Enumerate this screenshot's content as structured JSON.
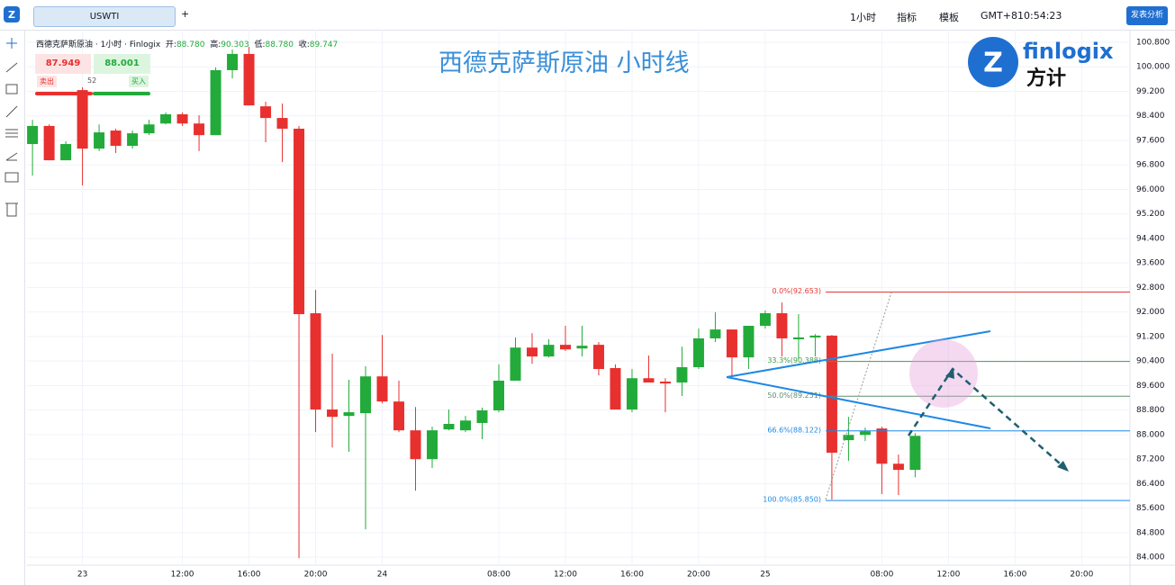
{
  "header": {
    "tab": "USWTI",
    "add_tab": "+",
    "interval": "1小时",
    "indicators": "指标",
    "templates": "模板",
    "timezone": "GMT+8",
    "clock": "10:54:23",
    "publish": "发表分析"
  },
  "legend": {
    "symbol": "西德克萨斯原油 · 1小时 · Finlogix",
    "open_label": "开:",
    "open": "88.780",
    "high_label": "高:",
    "high": "90.303",
    "low_label": "低:",
    "low": "88.780",
    "close_label": "收:",
    "close": "89.747"
  },
  "trade": {
    "sell_price": "87.949",
    "buy_price": "88.001",
    "sell": "卖出",
    "spread": "52",
    "buy": "买入"
  },
  "logo": {
    "name": "finlogix",
    "cn": "方计"
  },
  "chart_data": {
    "type": "candlestick",
    "title": "西德克萨斯原油 小时线",
    "up_color": "#22ab3a",
    "down_color": "#e8302f",
    "open": [
      97.48,
      98.07,
      96.95,
      99.24,
      97.33,
      97.92,
      97.42,
      97.83,
      98.15,
      98.45,
      98.15,
      97.77,
      99.89,
      100.42,
      98.71,
      98.33,
      97.98,
      91.96,
      88.82,
      88.61,
      88.7,
      89.9,
      89.08,
      88.14,
      87.2,
      88.17,
      88.14,
      88.38,
      88.79,
      89.76,
      90.84,
      90.55,
      90.93,
      90.81,
      90.93,
      90.17,
      88.82,
      89.84,
      89.73,
      89.7,
      90.2,
      91.14,
      91.43,
      90.52,
      91.55,
      91.96,
      91.11,
      91.17,
      91.23,
      87.82,
      87.99,
      88.2,
      87.05,
      86.85
    ],
    "high": [
      98.27,
      98.12,
      97.57,
      99.33,
      98.12,
      97.98,
      97.92,
      98.27,
      98.51,
      98.51,
      98.42,
      99.98,
      100.56,
      100.65,
      98.86,
      98.8,
      98.07,
      92.72,
      90.64,
      89.79,
      90.23,
      91.25,
      89.76,
      88.9,
      88.26,
      88.82,
      88.61,
      88.88,
      90.29,
      91.17,
      91.31,
      91.11,
      91.55,
      91.55,
      91.02,
      90.29,
      90.14,
      90.58,
      89.84,
      90.87,
      91.46,
      91.99,
      91.43,
      91.55,
      92.05,
      92.31,
      91.93,
      91.28,
      91.25,
      88.58,
      88.23,
      88.26,
      87.35,
      88.05
    ],
    "low": [
      96.45,
      96.95,
      96.95,
      96.13,
      97.25,
      97.19,
      97.33,
      97.77,
      98.12,
      98.07,
      97.25,
      97.77,
      99.62,
      98.74,
      97.54,
      96.89,
      83.97,
      88.08,
      87.58,
      87.44,
      84.91,
      89.02,
      88.08,
      86.17,
      86.91,
      88.14,
      88.08,
      87.85,
      88.73,
      89.76,
      90.31,
      90.52,
      90.73,
      90.55,
      89.93,
      88.82,
      88.73,
      89.7,
      88.73,
      89.26,
      90.14,
      91.02,
      89.9,
      90.14,
      91.46,
      90.55,
      90.46,
      90.55,
      85.88,
      87.14,
      87.79,
      86.06,
      86.03,
      86.61
    ],
    "close": [
      98.07,
      96.95,
      97.48,
      97.33,
      97.86,
      97.42,
      97.83,
      98.12,
      98.45,
      98.15,
      97.77,
      99.89,
      100.42,
      98.74,
      98.33,
      97.98,
      91.93,
      88.82,
      88.58,
      88.73,
      89.9,
      89.08,
      88.14,
      87.2,
      88.14,
      88.35,
      88.46,
      88.79,
      89.76,
      90.84,
      90.55,
      90.93,
      90.78,
      90.9,
      90.14,
      88.82,
      89.84,
      89.7,
      89.67,
      90.2,
      91.14,
      91.43,
      90.52,
      91.55,
      91.96,
      91.14,
      91.17,
      91.23,
      87.41,
      87.99,
      88.11,
      87.05,
      86.85,
      87.96
    ],
    "xlim": [
      -0.33,
      65.9
    ],
    "xticks": [
      {
        "value": 3,
        "label": "23"
      },
      {
        "value": 9,
        "label": "12:00"
      },
      {
        "value": 13,
        "label": "16:00"
      },
      {
        "value": 17,
        "label": "20:00"
      },
      {
        "value": 21,
        "label": "24"
      },
      {
        "value": 28,
        "label": "08:00"
      },
      {
        "value": 32,
        "label": "12:00"
      },
      {
        "value": 36,
        "label": "16:00"
      },
      {
        "value": 40,
        "label": "20:00"
      },
      {
        "value": 44,
        "label": "25"
      },
      {
        "value": 51,
        "label": "08:00"
      },
      {
        "value": 55,
        "label": "12:00"
      },
      {
        "value": 59,
        "label": "16:00"
      },
      {
        "value": 63,
        "label": "20:00"
      }
    ],
    "ylim": [
      83.74,
      101.21
    ],
    "yticks": [
      {
        "value": 84,
        "label": "84.000"
      },
      {
        "value": 84.8,
        "label": "84.800"
      },
      {
        "value": 85.6,
        "label": "85.600"
      },
      {
        "value": 86.4,
        "label": "86.400"
      },
      {
        "value": 87.2,
        "label": "87.200"
      },
      {
        "value": 88,
        "label": "88.000"
      },
      {
        "value": 88.8,
        "label": "88.800"
      },
      {
        "value": 89.6,
        "label": "89.600"
      },
      {
        "value": 90.4,
        "label": "90.400"
      },
      {
        "value": 91.2,
        "label": "91.200"
      },
      {
        "value": 92,
        "label": "92.000"
      },
      {
        "value": 92.8,
        "label": "92.800"
      },
      {
        "value": 93.6,
        "label": "93.600"
      },
      {
        "value": 94.4,
        "label": "94.400"
      },
      {
        "value": 95.2,
        "label": "95.200"
      },
      {
        "value": 96,
        "label": "96.000"
      },
      {
        "value": 96.8,
        "label": "96.800"
      },
      {
        "value": 97.6,
        "label": "97.600"
      },
      {
        "value": 98.4,
        "label": "98.400"
      },
      {
        "value": 99.2,
        "label": "99.200"
      },
      {
        "value": 100,
        "label": "100.000"
      },
      {
        "value": 100.8,
        "label": "100.800"
      }
    ],
    "grid": true,
    "fib_levels": [
      {
        "label": "0.0%(92.653)",
        "value": 92.653,
        "color": "#e53935"
      },
      {
        "label": "33.3%(90.388)",
        "value": 90.388,
        "color": "#43a047"
      },
      {
        "label": "50.0%(89.251)",
        "value": 89.251,
        "color": "#5f8f6a"
      },
      {
        "label": "66.6%(88.122)",
        "value": 88.122,
        "color": "#1e88e5"
      },
      {
        "label": "100.0%(85.850)",
        "value": 85.85,
        "color": "#1e88e5"
      }
    ]
  }
}
